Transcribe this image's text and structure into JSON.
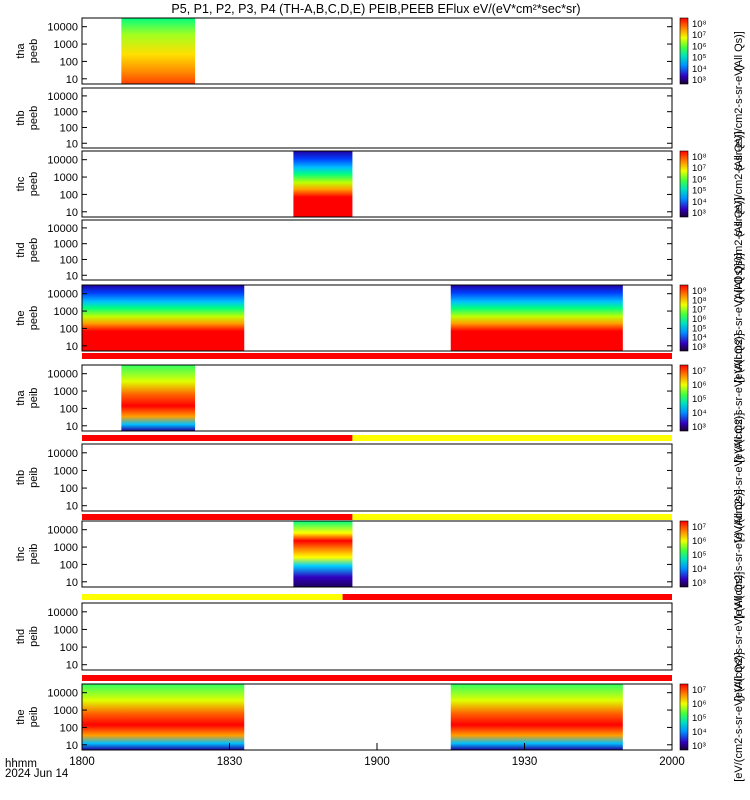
{
  "title": "P5, P1, P2, P3, P4 (TH-A,B,C,D,E) PEIB,PEEB EFlux eV/(eV*cm²*sec*sr)",
  "footer": {
    "axis_label": "hhmm",
    "date": "2024 Jun 14"
  },
  "colors": {
    "quality_red": "#ff0000",
    "quality_yellow": "#ffff00"
  },
  "chart_data": {
    "type": "heatmap",
    "x_ticks": [
      "1800",
      "1830",
      "1900",
      "1930",
      "2000"
    ],
    "xlim": [
      "18:00",
      "20:00"
    ],
    "y_ticks": [
      "10",
      "100",
      "1000",
      "10000"
    ],
    "y_scale": "log",
    "grid": false,
    "panels": [
      {
        "label": [
          "tha",
          "peeb"
        ],
        "cbar_units": "(All Qs)]",
        "cbar_ticks": [
          "10⁸",
          "10⁷",
          "10⁶",
          "10⁵",
          "10⁴",
          "10³"
        ],
        "data_blocks": [
          {
            "start": "18:08",
            "end": "18:23"
          }
        ]
      },
      {
        "label": [
          "thb",
          "peeb"
        ],
        "cbar_units": "(All Qs)]/cm2-s-sr-eV)",
        "data_blocks": []
      },
      {
        "label": [
          "thc",
          "peeb"
        ],
        "cbar_units": "(All Qs)]/cm2-s-sr-eV)",
        "cbar_ticks": [
          "10⁸",
          "10⁷",
          "10⁶",
          "10⁵",
          "10⁴",
          "10³"
        ],
        "data_blocks": [
          {
            "start": "18:43",
            "end": "18:55"
          }
        ]
      },
      {
        "label": [
          "thd",
          "peeb"
        ],
        "cbar_units": "(All Qs)]/cm2-s-sr-eV)",
        "data_blocks": []
      },
      {
        "label": [
          "the",
          "peeb"
        ],
        "cbar_units": "[eV/(cm2-s-sr-eV) (All Qs)]",
        "cbar_ticks": [
          "10⁹",
          "10⁸",
          "10⁷",
          "10⁶",
          "10⁵",
          "10⁴",
          "10³"
        ],
        "data_blocks": [
          {
            "start": "18:00",
            "end": "18:33"
          },
          {
            "start": "19:15",
            "end": "19:50"
          }
        ]
      },
      {
        "label": [
          "tha",
          "peib"
        ],
        "cbar_units": "[eV/(cm2-s-sr-eV) (All Qs)]",
        "cbar_ticks": [
          "10⁷",
          "10⁶",
          "10⁵",
          "10⁴",
          "10³"
        ],
        "data_blocks": [
          {
            "start": "18:08",
            "end": "18:23"
          }
        ]
      },
      {
        "label": [
          "thb",
          "peib"
        ],
        "cbar_units": "[eV/(cm2-s-sr-eV) (All Qs)]",
        "data_blocks": []
      },
      {
        "label": [
          "thc",
          "peib"
        ],
        "cbar_units": "[eV/(cm2-s-sr-eV) (All Qs)]",
        "cbar_ticks": [
          "10⁷",
          "10⁶",
          "10⁵",
          "10⁴",
          "10³"
        ],
        "data_blocks": [
          {
            "start": "18:43",
            "end": "18:55"
          }
        ]
      },
      {
        "label": [
          "thd",
          "peib"
        ],
        "cbar_units": "[eV/(cm2-s-sr-eV) (All Qs)]",
        "data_blocks": []
      },
      {
        "label": [
          "the",
          "peib"
        ],
        "cbar_units": "[eV/(cm2-s-sr-eV) (All Qs)]",
        "cbar_ticks": [
          "10⁷",
          "10⁶",
          "10⁵",
          "10⁴",
          "10³"
        ],
        "data_blocks": [
          {
            "start": "18:00",
            "end": "18:33"
          },
          {
            "start": "19:15",
            "end": "19:50"
          }
        ]
      }
    ],
    "quality_bars": [
      {
        "after_panel": 5,
        "segments": [
          {
            "start": "18:00",
            "end": "20:00",
            "color": "red"
          }
        ]
      },
      {
        "after_panel": 6,
        "segments": [
          {
            "start": "18:00",
            "end": "18:55",
            "color": "red"
          },
          {
            "start": "18:55",
            "end": "20:00",
            "color": "yellow"
          }
        ]
      },
      {
        "after_panel": 7,
        "segments": [
          {
            "start": "18:00",
            "end": "18:55",
            "color": "red"
          },
          {
            "start": "18:55",
            "end": "20:00",
            "color": "yellow"
          }
        ]
      },
      {
        "after_panel": 8,
        "segments": [
          {
            "start": "18:00",
            "end": "18:53",
            "color": "yellow"
          },
          {
            "start": "18:53",
            "end": "20:00",
            "color": "red"
          }
        ]
      },
      {
        "after_panel": 9,
        "segments": [
          {
            "start": "18:00",
            "end": "20:00",
            "color": "red"
          }
        ]
      }
    ]
  }
}
